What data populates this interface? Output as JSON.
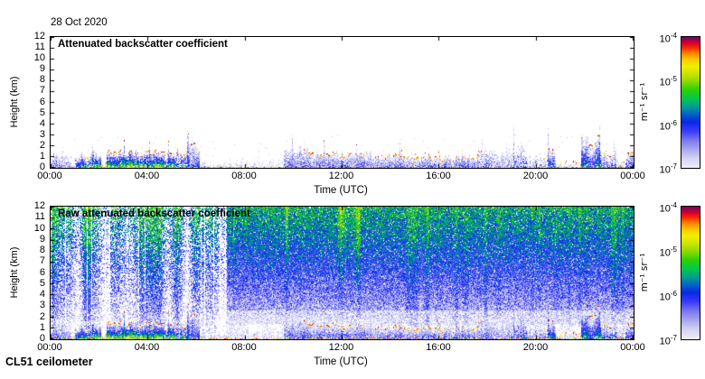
{
  "figure": {
    "date_label": "28 Oct 2020",
    "footer_label": "CL51 ceilometer",
    "background": "#ffffff"
  },
  "colormap": {
    "log_range": [
      -7,
      -4
    ],
    "stops": [
      [
        0.0,
        "#eeeefa"
      ],
      [
        0.07,
        "#d4d4f4"
      ],
      [
        0.14,
        "#a8a8ee"
      ],
      [
        0.21,
        "#7878f0"
      ],
      [
        0.28,
        "#3c3cff"
      ],
      [
        0.35,
        "#0a28e6"
      ],
      [
        0.41,
        "#0064c8"
      ],
      [
        0.47,
        "#00a08c"
      ],
      [
        0.53,
        "#00c850"
      ],
      [
        0.6,
        "#32d200"
      ],
      [
        0.67,
        "#96dc00"
      ],
      [
        0.73,
        "#d2e600"
      ],
      [
        0.78,
        "#f0f000"
      ],
      [
        0.83,
        "#ffc800"
      ],
      [
        0.88,
        "#ff8200"
      ],
      [
        0.92,
        "#ff2800"
      ],
      [
        0.96,
        "#cd0032"
      ],
      [
        1.0,
        "#7d0066"
      ]
    ]
  },
  "chart_data": [
    {
      "type": "heatmap",
      "title": "Attenuated backscatter coefficient",
      "xlabel": "Time (UTC)",
      "ylabel": "Height (km)",
      "x_ticks": [
        "00:00",
        "04:00",
        "08:00",
        "12:00",
        "16:00",
        "20:00",
        "00:00"
      ],
      "x_range_hours": [
        0,
        24
      ],
      "y_ticks": [
        "0",
        "1",
        "2",
        "3",
        "4",
        "5",
        "6",
        "7",
        "8",
        "9",
        "10",
        "11",
        "12"
      ],
      "ylim_km": [
        0,
        12
      ],
      "colorbar_label": "m⁻¹ sr⁻¹",
      "colorbar_ticks": [
        {
          "base": "10",
          "exp": "-4"
        },
        {
          "base": "10",
          "exp": "-5"
        },
        {
          "base": "10",
          "exp": "-6"
        },
        {
          "base": "10",
          "exp": "-7"
        }
      ],
      "render_mode": "processed",
      "boundary_layer_segments": [
        [
          0.0,
          0.85,
          1.05,
          0.45,
          -6.2,
          0.75
        ],
        [
          0.85,
          1.0,
          0.3,
          0.2,
          -6.6,
          0.5
        ],
        [
          1.0,
          1.65,
          1.25,
          0.5,
          -5.6,
          0.85
        ],
        [
          1.65,
          2.1,
          1.15,
          0.35,
          -5.2,
          0.9
        ],
        [
          2.1,
          2.3,
          0.4,
          0.3,
          -6.4,
          0.5
        ],
        [
          2.3,
          4.6,
          1.3,
          0.4,
          -4.85,
          0.95
        ],
        [
          4.6,
          5.55,
          1.25,
          0.6,
          -5.25,
          0.8
        ],
        [
          5.55,
          6.15,
          1.9,
          0.7,
          -5.9,
          0.8
        ],
        [
          6.15,
          7.3,
          0.35,
          0.25,
          -6.6,
          0.45
        ],
        [
          7.3,
          9.6,
          0.5,
          0.45,
          -6.8,
          0.4
        ],
        [
          9.6,
          10.6,
          1.7,
          0.45,
          -6.35,
          0.9
        ],
        [
          10.6,
          13.2,
          1.25,
          0.35,
          -6.15,
          0.95
        ],
        [
          13.2,
          15.6,
          1.05,
          0.3,
          -6.25,
          0.9
        ],
        [
          15.6,
          16.8,
          0.8,
          0.3,
          -6.3,
          0.85
        ],
        [
          16.8,
          17.6,
          1.0,
          0.3,
          -6.1,
          0.85
        ],
        [
          17.6,
          18.85,
          1.3,
          0.5,
          -6.2,
          0.7
        ],
        [
          18.85,
          19.6,
          1.9,
          0.7,
          -6.1,
          0.6
        ],
        [
          19.6,
          20.45,
          0.8,
          0.5,
          -6.4,
          0.5
        ],
        [
          20.45,
          20.8,
          1.6,
          0.4,
          -5.8,
          0.8
        ],
        [
          20.8,
          21.85,
          0.35,
          0.25,
          -6.6,
          0.5
        ],
        [
          21.85,
          22.65,
          2.5,
          0.6,
          -5.7,
          0.85
        ],
        [
          22.65,
          23.3,
          1.4,
          0.5,
          -6.0,
          0.7
        ],
        [
          23.3,
          23.65,
          0.5,
          0.3,
          -6.4,
          0.5
        ],
        [
          23.65,
          24.01,
          1.2,
          0.4,
          -5.8,
          0.8
        ]
      ],
      "cloud_base_dot_hours": [
        [
          1.5,
          6.2
        ],
        [
          10.4,
          17.8
        ],
        [
          20.3,
          24.0
        ]
      ],
      "surface_return_log_value": -4.55
    },
    {
      "type": "heatmap",
      "title": "Raw attenuated backscatter coefficient",
      "xlabel": "Time (UTC)",
      "ylabel": "Height (km)",
      "x_ticks": [
        "00:00",
        "04:00",
        "08:00",
        "12:00",
        "16:00",
        "20:00",
        "00:00"
      ],
      "x_range_hours": [
        0,
        24
      ],
      "y_ticks": [
        "0",
        "1",
        "2",
        "3",
        "4",
        "5",
        "6",
        "7",
        "8",
        "9",
        "10",
        "11",
        "12"
      ],
      "ylim_km": [
        0,
        12
      ],
      "colorbar_label": "m⁻¹ sr⁻¹",
      "colorbar_ticks": [
        {
          "base": "10",
          "exp": "-4"
        },
        {
          "base": "10",
          "exp": "-5"
        },
        {
          "base": "10",
          "exp": "-6"
        },
        {
          "base": "10",
          "exp": "-7"
        }
      ],
      "render_mode": "raw",
      "noise": {
        "transition_hour": 7.25,
        "height_gradient_log": [
          [
            0,
            -6.9
          ],
          [
            1.5,
            -6.8
          ],
          [
            3,
            -6.55
          ],
          [
            5,
            -6.3
          ],
          [
            7,
            -6.05
          ],
          [
            9,
            -5.8
          ],
          [
            11,
            -5.6
          ],
          [
            12,
            -5.5
          ]
        ],
        "warm_streak_window_hours": [
          7.5,
          13.4
        ],
        "early_column_gap_fraction": 0.06
      }
    }
  ]
}
